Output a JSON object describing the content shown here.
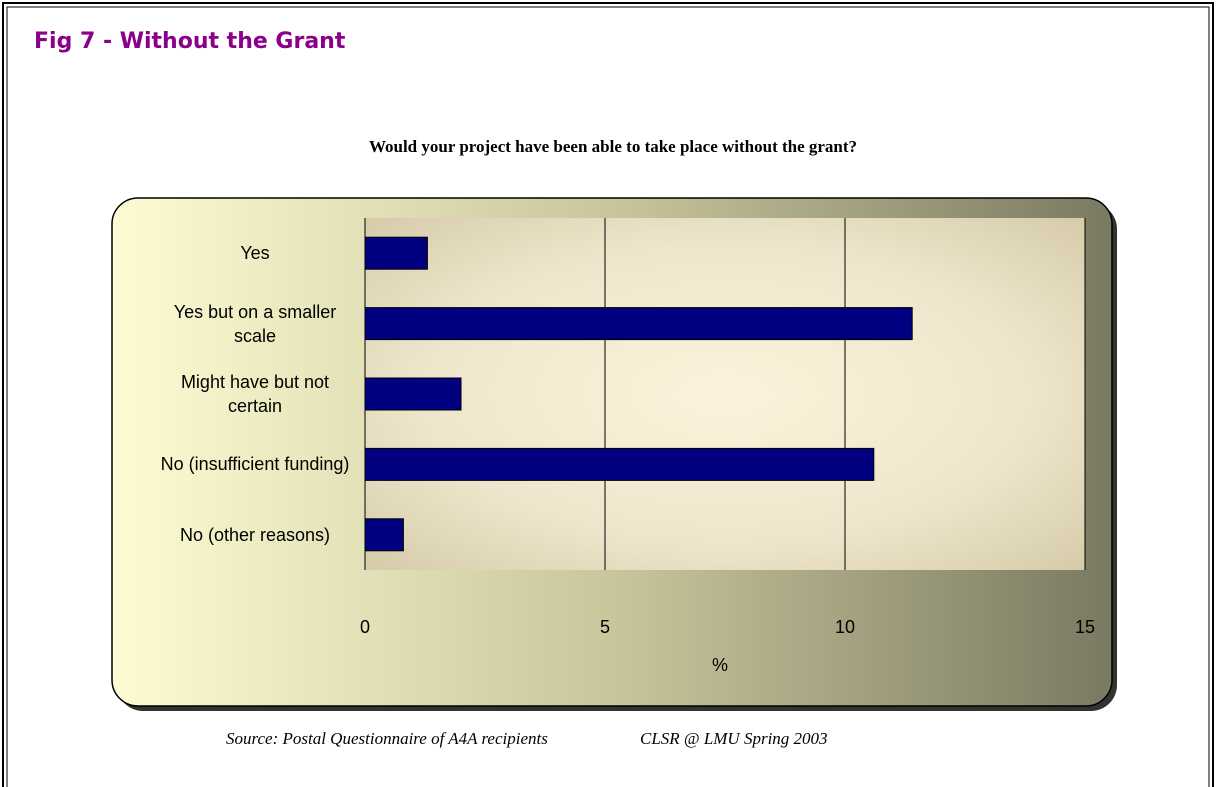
{
  "heading": "Fig 7 - Without the Grant",
  "chart_data": {
    "type": "bar",
    "orientation": "horizontal",
    "title": "Would your project have been able to take place without the grant?",
    "categories": [
      "Yes",
      "Yes but on a smaller scale",
      "Might have but not certain",
      "No (insufficient funding)",
      "No (other reasons)"
    ],
    "values": [
      1.3,
      11.4,
      2.0,
      10.6,
      0.8
    ],
    "color": "#000080",
    "xlabel": "%",
    "xlim": [
      0,
      15
    ],
    "xticks": [
      0,
      5,
      10,
      15
    ],
    "grid": true
  },
  "source": "Source: Postal Questionnaire of A4A recipients",
  "credit": "CLSR @ LMU Spring 2003"
}
